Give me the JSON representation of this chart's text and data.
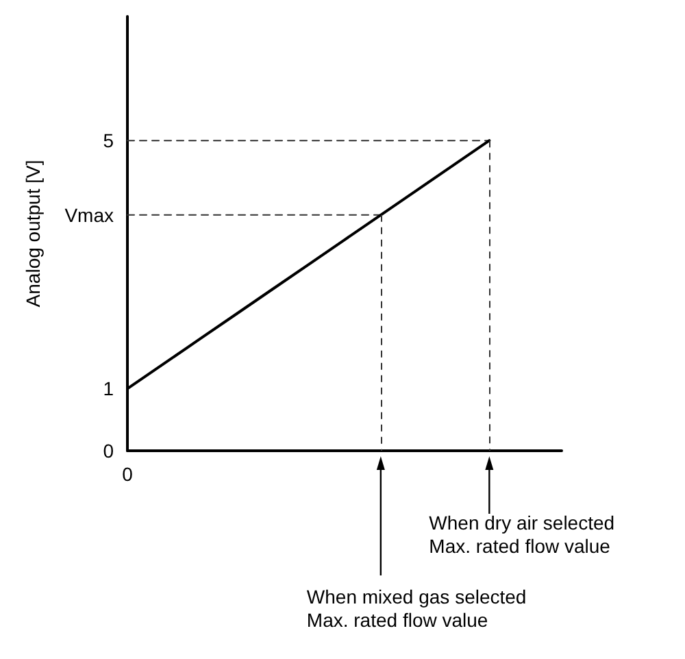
{
  "chart_data": {
    "type": "line",
    "ylabel": "Analog output [V]",
    "categories": [
      "0",
      null,
      null,
      null,
      null,
      null,
      null,
      null,
      null,
      null,
      null,
      null,
      null
    ],
    "ylim": [
      0,
      7
    ],
    "yticks": [
      {
        "value": 0,
        "label": "0"
      },
      {
        "value": 1,
        "label": "1"
      },
      {
        "value": 3.8,
        "label": "Vmax"
      },
      {
        "value": 5,
        "label": "5"
      }
    ],
    "marker": "none",
    "series": [
      {
        "color": "#000000",
        "values": [
          1,
          1.4,
          1.8,
          2.2,
          2.6,
          3,
          3.4,
          3.8,
          4.2,
          4.6,
          5,
          null,
          null
        ],
        "line_style": "solid"
      },
      {
        "color": "#333333",
        "values": [
          5,
          5,
          5,
          5,
          5,
          5,
          5,
          5,
          5,
          5,
          5,
          null,
          null
        ],
        "line_style": "dashed"
      },
      {
        "color": "#333333",
        "values": [
          3.8,
          3.8,
          3.8,
          3.8,
          3.8,
          3.8,
          3.8,
          3.8,
          null,
          null,
          null,
          null,
          null
        ],
        "line_style": "dashed"
      }
    ],
    "annotations": [
      "When dry air selected\nMax. rated flow value",
      "When mixed gas selected\nMax. rated flow value"
    ]
  }
}
